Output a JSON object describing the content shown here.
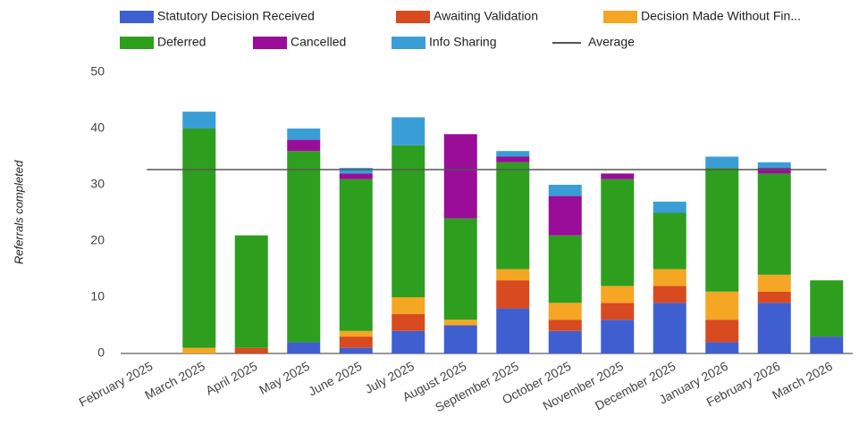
{
  "chart_data": {
    "type": "stacked_bar",
    "y_axis_label": "Referrals completed",
    "categories": [
      "February 2025",
      "March 2025",
      "April 2025",
      "May 2025",
      "June 2025",
      "July 2025",
      "August 2025",
      "September 2025",
      "October 2025",
      "November 2025",
      "December 2025",
      "January 2026",
      "February 2026",
      "March 2026"
    ],
    "series": [
      {
        "name": "Statutory Decision Received",
        "color": "#3f5fd0",
        "values": [
          0,
          0,
          0,
          2,
          1,
          4,
          5,
          8,
          4,
          6,
          9,
          2,
          9,
          3
        ]
      },
      {
        "name": "Awaiting Validation",
        "color": "#d84a1f",
        "values": [
          0,
          0,
          1,
          0,
          2,
          3,
          0,
          5,
          2,
          3,
          3,
          4,
          2,
          0
        ]
      },
      {
        "name": "Decision Made Without Fin...",
        "color": "#f5a623",
        "values": [
          0,
          1,
          0,
          0,
          1,
          3,
          1,
          2,
          3,
          3,
          3,
          5,
          3,
          0
        ]
      },
      {
        "name": "Deferred",
        "color": "#2e9e1f",
        "values": [
          0,
          39,
          20,
          34,
          27,
          27,
          18,
          19,
          12,
          19,
          10,
          22,
          18,
          10
        ]
      },
      {
        "name": "Cancelled",
        "color": "#990d99",
        "values": [
          0,
          0,
          0,
          2,
          1,
          0,
          15,
          1,
          7,
          1,
          0,
          0,
          1,
          0
        ]
      },
      {
        "name": "Info Sharing",
        "color": "#3a9ed6",
        "values": [
          0,
          3,
          0,
          2,
          1,
          5,
          0,
          1,
          2,
          0,
          2,
          2,
          1,
          0
        ]
      }
    ],
    "average": {
      "name": "Average",
      "value": 32.7,
      "color": "#555555"
    },
    "ylim": [
      0,
      50
    ],
    "yticks": [
      0,
      10,
      20,
      30,
      40,
      50
    ],
    "grid": true
  }
}
